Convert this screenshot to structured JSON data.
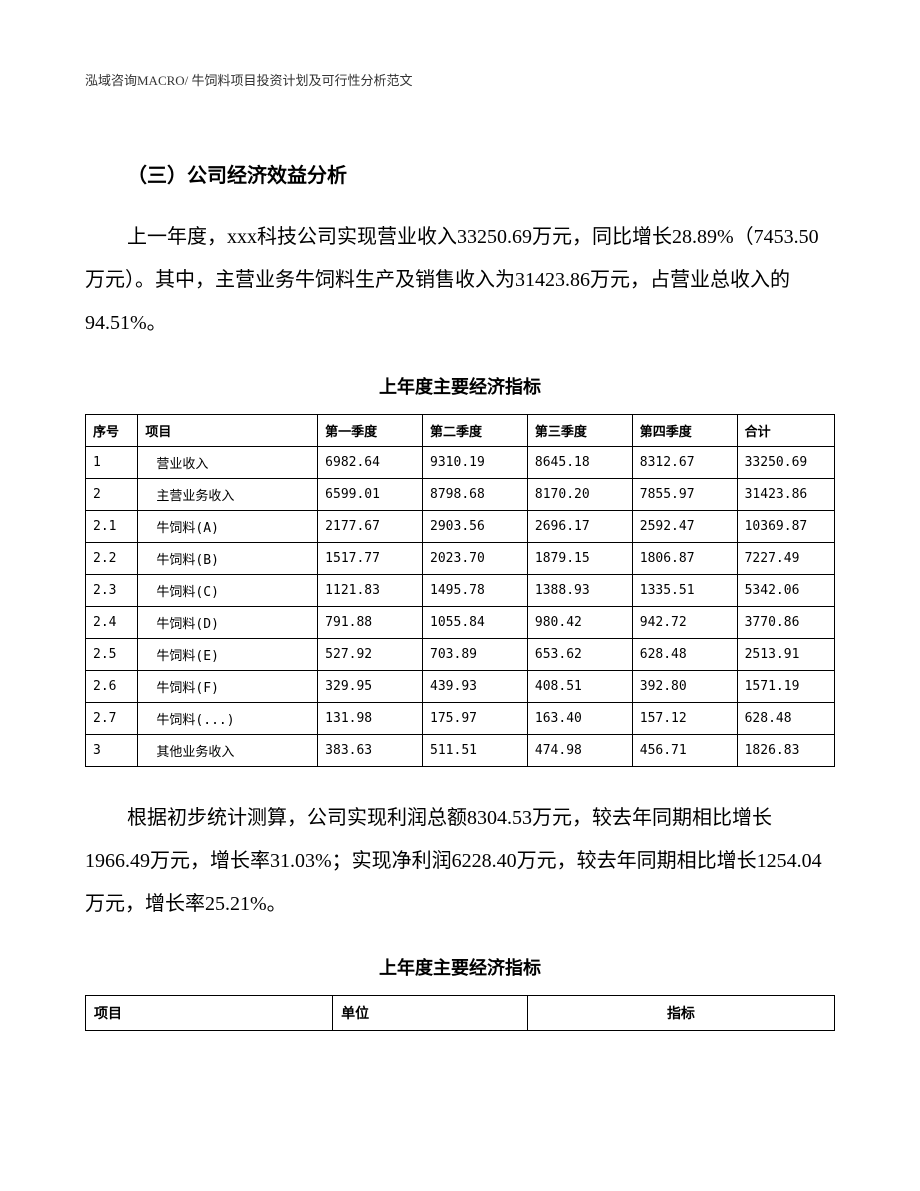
{
  "header": "泓域咨询MACRO/    牛饲料项目投资计划及可行性分析范文",
  "sectionTitle": "（三）公司经济效益分析",
  "paragraph1": "上一年度，xxx科技公司实现营业收入33250.69万元，同比增长28.89%（7453.50万元）。其中，主营业务牛饲料生产及销售收入为31423.86万元，占营业总收入的94.51%。",
  "table1": {
    "title": "上年度主要经济指标",
    "headers": {
      "seq": "序号",
      "item": "项目",
      "q1": "第一季度",
      "q2": "第二季度",
      "q3": "第三季度",
      "q4": "第四季度",
      "total": "合计"
    },
    "rows": [
      {
        "seq": "1",
        "item": "营业收入",
        "indent": 1,
        "q1": "6982.64",
        "q2": "9310.19",
        "q3": "8645.18",
        "q4": "8312.67",
        "total": "33250.69"
      },
      {
        "seq": "2",
        "item": "主营业务收入",
        "indent": 1,
        "q1": "6599.01",
        "q2": "8798.68",
        "q3": "8170.20",
        "q4": "7855.97",
        "total": "31423.86"
      },
      {
        "seq": "2.1",
        "item": "牛饲料(A)",
        "indent": 1,
        "q1": "2177.67",
        "q2": "2903.56",
        "q3": "2696.17",
        "q4": "2592.47",
        "total": "10369.87"
      },
      {
        "seq": "2.2",
        "item": "牛饲料(B)",
        "indent": 1,
        "q1": "1517.77",
        "q2": "2023.70",
        "q3": "1879.15",
        "q4": "1806.87",
        "total": "7227.49"
      },
      {
        "seq": "2.3",
        "item": "牛饲料(C)",
        "indent": 1,
        "q1": "1121.83",
        "q2": "1495.78",
        "q3": "1388.93",
        "q4": "1335.51",
        "total": "5342.06"
      },
      {
        "seq": "2.4",
        "item": "牛饲料(D)",
        "indent": 1,
        "q1": "791.88",
        "q2": "1055.84",
        "q3": "980.42",
        "q4": "942.72",
        "total": "3770.86"
      },
      {
        "seq": "2.5",
        "item": "牛饲料(E)",
        "indent": 1,
        "q1": "527.92",
        "q2": "703.89",
        "q3": "653.62",
        "q4": "628.48",
        "total": "2513.91"
      },
      {
        "seq": "2.6",
        "item": "牛饲料(F)",
        "indent": 1,
        "q1": "329.95",
        "q2": "439.93",
        "q3": "408.51",
        "q4": "392.80",
        "total": "1571.19"
      },
      {
        "seq": "2.7",
        "item": "牛饲料(...)",
        "indent": 1,
        "q1": "131.98",
        "q2": "175.97",
        "q3": "163.40",
        "q4": "157.12",
        "total": "628.48"
      },
      {
        "seq": "3",
        "item": "其他业务收入",
        "indent": 1,
        "q1": "383.63",
        "q2": "511.51",
        "q3": "474.98",
        "q4": "456.71",
        "total": "1826.83"
      }
    ]
  },
  "paragraph2": "根据初步统计测算，公司实现利润总额8304.53万元，较去年同期相比增长1966.49万元，增长率31.03%；实现净利润6228.40万元，较去年同期相比增长1254.04万元，增长率25.21%。",
  "table2": {
    "title": "上年度主要经济指标",
    "headers": {
      "item": "项目",
      "unit": "单位",
      "indicator": "指标"
    }
  }
}
